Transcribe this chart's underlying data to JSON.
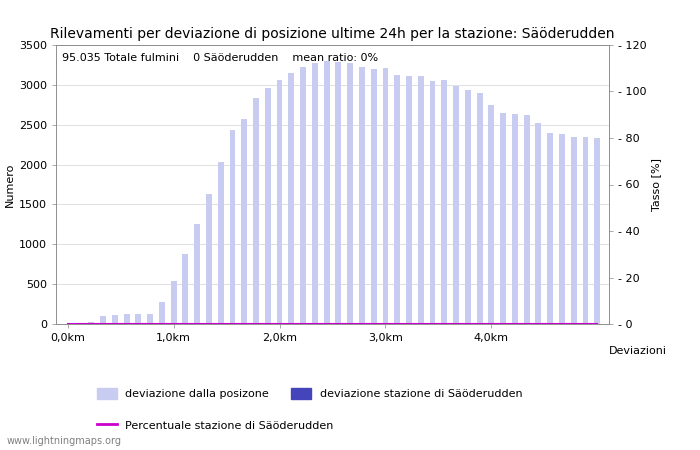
{
  "title": "Rilevamenti per deviazione di posizione ultime 24h per la stazione: Säöderudden",
  "subtitle": "95.035 Totale fulmini    0 Säöderudden    mean ratio: 0%",
  "ylabel_left": "Numero",
  "ylabel_right": "Tasso [%]",
  "xlabel": "Deviazioni",
  "watermark": "www.lightningmaps.org",
  "legend_label1": "deviazione dalla posizone",
  "legend_label2": "deviazione stazione di Säöderudden",
  "legend_label3": "Percentuale stazione di Säöderudden",
  "bar_color_light": "#c8ccf0",
  "bar_color_dark": "#4444bb",
  "line_color": "#cc00cc",
  "ylim_left": [
    0,
    3500
  ],
  "ylim_right": [
    0,
    120
  ],
  "xtick_labels": [
    "0,0km",
    "1,0km",
    "2,0km",
    "3,0km",
    "4,0km"
  ],
  "xtick_positions": [
    0,
    9,
    18,
    27,
    36
  ],
  "ytick_left": [
    0,
    500,
    1000,
    1500,
    2000,
    2500,
    3000,
    3500
  ],
  "ytick_right": [
    0,
    20,
    40,
    60,
    80,
    100,
    120
  ],
  "bar_values": [
    3,
    8,
    20,
    100,
    110,
    120,
    130,
    120,
    280,
    540,
    880,
    1260,
    1630,
    2030,
    2430,
    2570,
    2840,
    2960,
    3060,
    3150,
    3230,
    3270,
    3300,
    3290,
    3270,
    3220,
    3200,
    3210,
    3120,
    3110,
    3110,
    3050,
    3060,
    2990,
    2930,
    2900,
    2750,
    2650,
    2640,
    2620,
    2520,
    2390,
    2380,
    2350,
    2350,
    2330
  ],
  "ratio_values": [
    0,
    0,
    0,
    0,
    0,
    0,
    0,
    0,
    0,
    0,
    0,
    0,
    0,
    0,
    0,
    0,
    0,
    0,
    0,
    0,
    0,
    0,
    0,
    0,
    0,
    0,
    0,
    0,
    0,
    0,
    0,
    0,
    0,
    0,
    0,
    0,
    0,
    0,
    0,
    0,
    0,
    0,
    0,
    0,
    0,
    0
  ],
  "fig_bg": "#ffffff",
  "font_size_title": 10,
  "font_size_axis": 8,
  "font_size_subtitle": 8
}
